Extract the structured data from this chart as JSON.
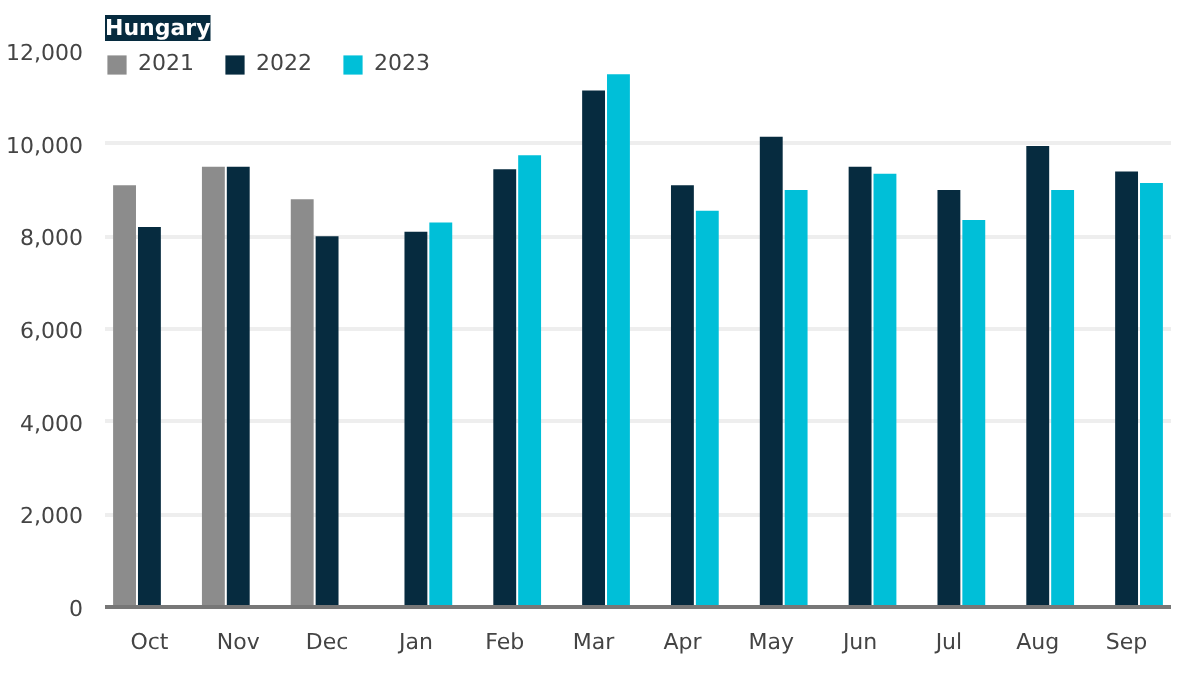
{
  "chart_data": {
    "type": "bar",
    "title": "Hungary",
    "categories": [
      "Oct",
      "Nov",
      "Dec",
      "Jan",
      "Feb",
      "Mar",
      "Apr",
      "May",
      "Jun",
      "Jul",
      "Aug",
      "Sep"
    ],
    "series": [
      {
        "name": "2021",
        "color": "#8c8c8c",
        "values": [
          9100,
          9500,
          8800,
          null,
          null,
          null,
          null,
          null,
          null,
          null,
          null,
          null
        ]
      },
      {
        "name": "2022",
        "color": "#062b3f",
        "values": [
          8200,
          9500,
          8000,
          8100,
          9450,
          11150,
          9100,
          10150,
          9500,
          9000,
          9950,
          9400
        ]
      },
      {
        "name": "2023",
        "color": "#00bfd8",
        "values": [
          null,
          null,
          null,
          8300,
          9750,
          11500,
          8550,
          9000,
          9350,
          8350,
          9000,
          9150
        ]
      }
    ],
    "ylim": [
      0,
      12000
    ],
    "yticks": [
      0,
      {
        "value": 2000,
        "label": "2,000"
      },
      {
        "value": 4000,
        "label": "4,000"
      },
      {
        "value": 6000,
        "label": "6,000"
      },
      {
        "value": 8000,
        "label": "8,000"
      },
      {
        "value": 10000,
        "label": "10,000"
      },
      {
        "value": 12000,
        "label": "12,000"
      }
    ],
    "grid": "y",
    "legend": "top left"
  }
}
